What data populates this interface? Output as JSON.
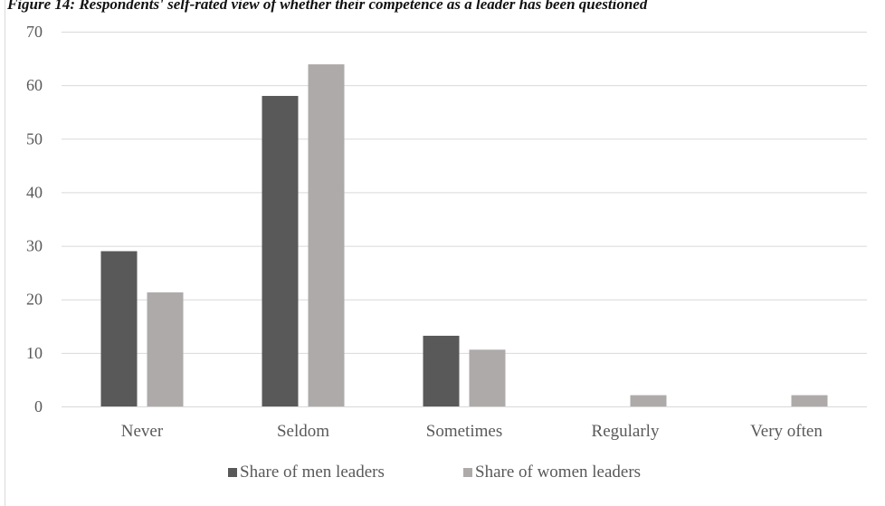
{
  "title": "Figure 14: Respondents' self-rated view of whether their competence as a leader has been questioned",
  "chart_data": {
    "type": "bar",
    "title": "Figure 14: Respondents' self-rated view of whether their competence as a leader has been questioned",
    "categories": [
      "Never",
      "Seldom",
      "Sometimes",
      "Regularly",
      "Very often"
    ],
    "series": [
      {
        "name": "Share of men leaders",
        "values": [
          29.0,
          58.0,
          13.2,
          0,
          0
        ],
        "color": "#595959"
      },
      {
        "name": "Share of women leaders",
        "values": [
          21.3,
          63.9,
          10.6,
          2.1,
          2.1
        ],
        "color": "#aeaaaa"
      }
    ],
    "yticks": [
      0,
      10,
      20,
      30,
      40,
      50,
      60,
      70
    ],
    "ylim": [
      0,
      70
    ],
    "xlabel": "",
    "ylabel": "",
    "grid": true,
    "legend_position": "bottom"
  }
}
